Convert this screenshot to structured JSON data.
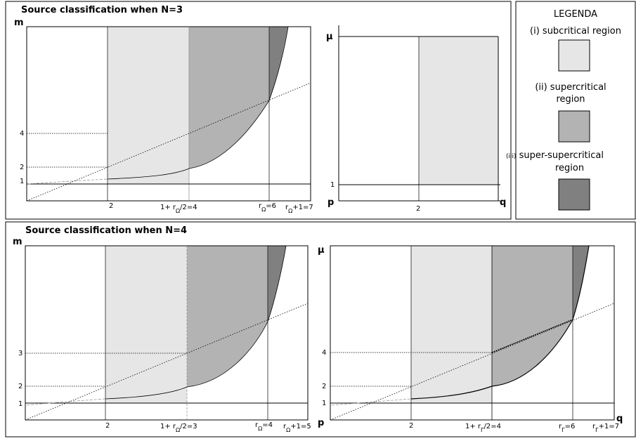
{
  "top": {
    "title": "Source classification when N=3",
    "plot1": {
      "y_axis": "m",
      "y_ticks": [
        "4",
        "2",
        "1"
      ],
      "x_ticks": {
        "two": "2",
        "mid_a": "1+ r",
        "mid_sub": "Ω",
        "mid_b": "/2=4",
        "r_a": "r",
        "r_sub": "Ω",
        "r_b": "=6",
        "rp_a": "r",
        "rp_sub": "Ω",
        "rp_b": "+1=7"
      }
    },
    "plot2": {
      "y_axis": "μ",
      "y_ticks": [
        "1"
      ],
      "x_axis_left": "p",
      "x_axis_right": "q",
      "x_ticks": [
        "2"
      ]
    }
  },
  "legend": {
    "title": "LEGENDA",
    "item1": "(i) subcritical region",
    "item2_line1": "(ii) supercritical",
    "item2_line2": "region",
    "item3_prefix": "(iii)",
    "item3_line1": " super-supercritical",
    "item3_line2": "region",
    "colors": {
      "subcritical": "#e6e6e6",
      "supercritical": "#b3b3b3",
      "super_supercritical": "#808080"
    }
  },
  "bottom": {
    "title": "Source classification when N=4",
    "plot1": {
      "y_axis": "m",
      "y_ticks": [
        "3",
        "2",
        "1"
      ],
      "x_ticks": {
        "two": "2",
        "mid_a": "1+ r",
        "mid_sub": "Ω",
        "mid_b": "/2=3",
        "r_a": "r",
        "r_sub": "Ω",
        "r_b": "=4",
        "rp_a": "r",
        "rp_sub": "Ω",
        "rp_b": "+1=5"
      }
    },
    "plot2": {
      "y_axis": "μ",
      "y_ticks": [
        "4",
        "2",
        "1"
      ],
      "x_axis_left": "p",
      "x_axis_right": "q",
      "x_ticks": {
        "two": "2",
        "mid_a": "1+ r",
        "mid_sub": "Γ",
        "mid_b": "/2=4",
        "r_a": "r",
        "r_sub": "Γ",
        "r_b": "=6",
        "rp_a": "r",
        "rp_sub": "Γ",
        "rp_b": "+1=7"
      }
    }
  }
}
